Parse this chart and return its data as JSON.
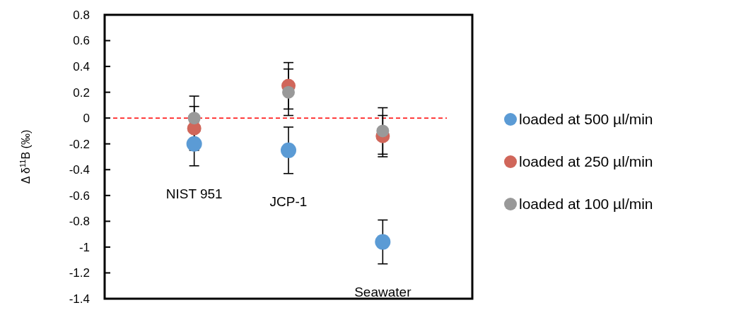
{
  "chart_data": {
    "type": "scatter",
    "ylabel": "Δ δ$^{11}$B (‰)",
    "categories": [
      "NIST 951",
      "JCP-1",
      "Seawater"
    ],
    "series": [
      {
        "name": "loaded at 500 µl/min",
        "color": "#5b9bd5",
        "values": [
          -0.2,
          -0.25,
          -0.96
        ],
        "errors": [
          0.17,
          0.18,
          0.17
        ]
      },
      {
        "name": "loaded at 250 µl/min",
        "color": "#d0665a",
        "values": [
          -0.08,
          0.25,
          -0.14
        ],
        "errors": [
          0.17,
          0.18,
          0.16
        ]
      },
      {
        "name": "loaded at 100 µl/min",
        "color": "#999999",
        "values": [
          0,
          0.2,
          -0.1
        ],
        "errors": [
          0.17,
          0.18,
          0.18
        ]
      }
    ],
    "ylim": [
      -1.4,
      0.8
    ],
    "yticks": [
      -1.4,
      -1.2,
      -1,
      -0.8,
      -0.6,
      -0.4,
      -0.2,
      0,
      0.2,
      0.4,
      0.6,
      0.8
    ],
    "ref_lines": [
      {
        "axis": "y",
        "value": 0,
        "color": "#ff0000",
        "line_style": "dashed"
      }
    ],
    "legend": "right",
    "marker": "circle",
    "grid": false
  }
}
